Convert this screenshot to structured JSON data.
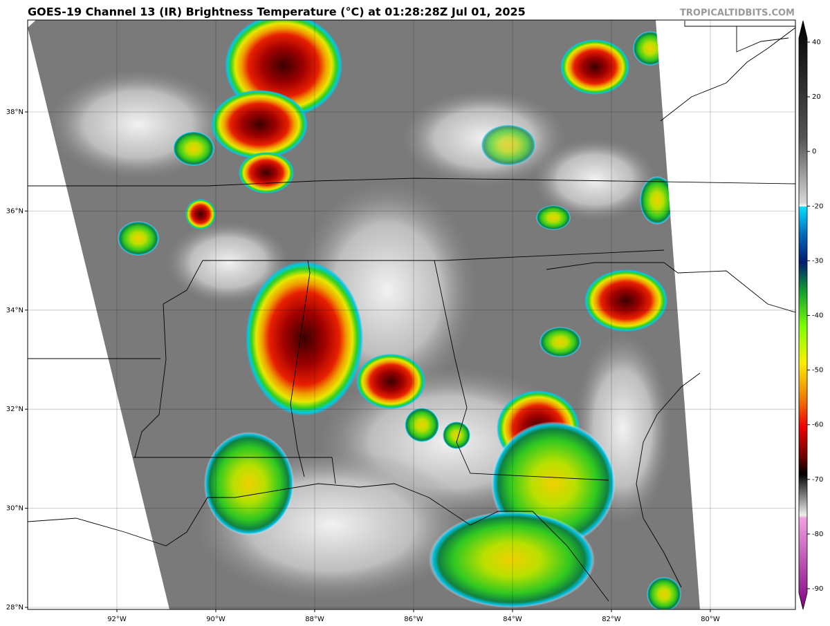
{
  "header": {
    "title": "GOES-19 Channel 13 (IR) Brightness Temperature (°C) at 01:28:28Z Jul 01, 2025",
    "watermark": "TROPICALTIDBITS.COM"
  },
  "map": {
    "longitude_labels": [
      "92°W",
      "90°W",
      "88°W",
      "86°W",
      "84°W",
      "82°W",
      "80°W"
    ],
    "latitude_labels": [
      "38°N",
      "36°N",
      "34°N",
      "32°N",
      "30°N",
      "28°N"
    ]
  },
  "colorbar": {
    "ticks": [
      40,
      20,
      0,
      -20,
      -30,
      -40,
      -50,
      -60,
      -70,
      -80,
      -90
    ]
  }
}
